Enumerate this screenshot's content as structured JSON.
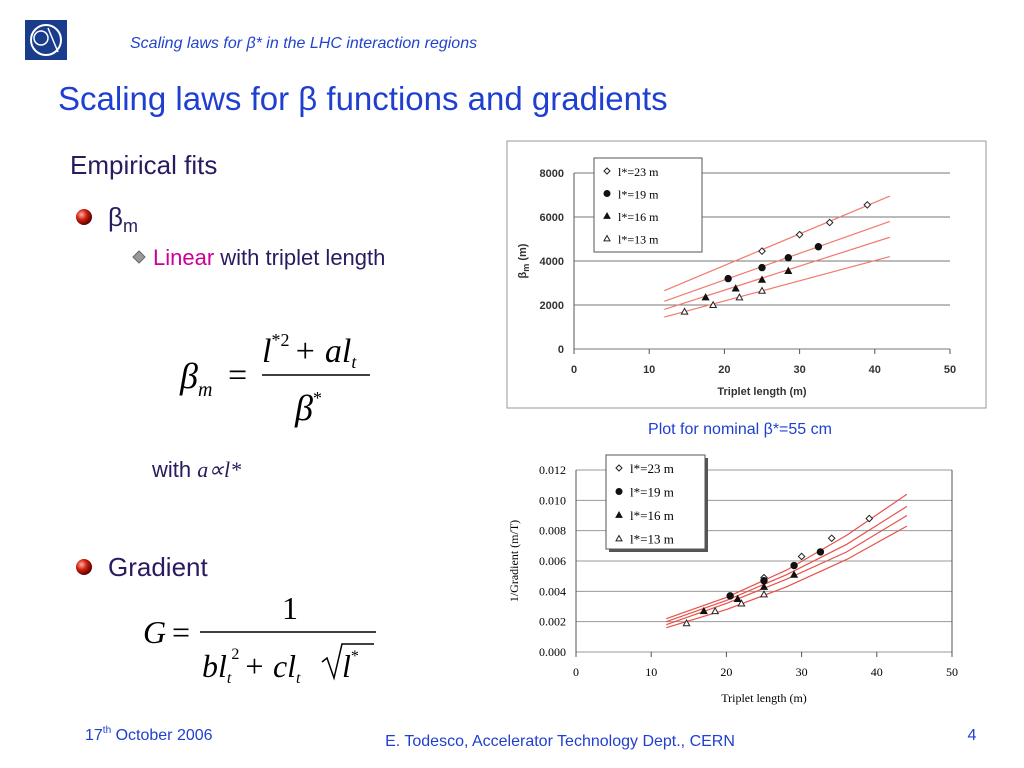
{
  "header": {
    "subtitle": "Scaling laws for β* in the LHC interaction regions",
    "title": "Scaling laws for β functions and gradients"
  },
  "body": {
    "heading": "Empirical fits",
    "bullet1": "β",
    "bullet1_sub": "m",
    "sub_highlight": "Linear",
    "sub_rest": "with triplet length",
    "with_text": "with",
    "with_math": "a∝l*",
    "bullet2": "Gradient"
  },
  "formula1": {
    "lhs": "β",
    "lhs_sub": "m",
    "eq": "=",
    "num_l": "l",
    "num_sup": "*2",
    "num_rest": "+ al",
    "num_sub": "t",
    "den": "β",
    "den_sup": "*"
  },
  "formula2": {
    "lhs": "G",
    "eq": "=",
    "num": "1",
    "den_bl": "bl",
    "den_sub1": "t",
    "den_sup1": "2",
    "den_cl": "+ cl",
    "den_sub2": "t",
    "den_l": "l",
    "den_sup2": "*"
  },
  "caption": "Plot for nominal β*=55 cm",
  "footer": {
    "date_day": "17",
    "date_sup": "th",
    "date_rest": "October 2006",
    "author": "E. Todesco, Accelerator Technology Dept., CERN",
    "page": "4"
  },
  "chart_data": [
    {
      "type": "scatter",
      "ylabel": "β",
      "ylabel_sub": "m",
      "ylabel_rest": " (m)",
      "xlabel": "Triplet length (m)",
      "xlim": [
        0,
        50
      ],
      "xticks": [
        0,
        10,
        20,
        30,
        40,
        50
      ],
      "ylim": [
        0,
        8000
      ],
      "yticks": [
        0,
        2000,
        4000,
        6000,
        8000
      ],
      "grid": true,
      "legend": "upper left",
      "fit_color": "#f07a6e",
      "series": [
        {
          "name": "l*=23 m",
          "marker": "diamond-open",
          "color": "#222222",
          "x": [
            25,
            30,
            34,
            39
          ],
          "values": [
            4450,
            5200,
            5750,
            6550
          ],
          "fit_x": [
            12,
            42
          ],
          "fit_y": [
            2650,
            6950
          ]
        },
        {
          "name": "l*=19 m",
          "marker": "circle",
          "color": "#111111",
          "x": [
            20.5,
            25,
            28.5,
            32.5
          ],
          "values": [
            3200,
            3700,
            4150,
            4650
          ],
          "fit_x": [
            12,
            42
          ],
          "fit_y": [
            2170,
            5800
          ]
        },
        {
          "name": "l*=16 m",
          "marker": "triangle",
          "color": "#111111",
          "x": [
            17.5,
            21.5,
            25,
            28.5
          ],
          "values": [
            2350,
            2750,
            3150,
            3550
          ],
          "fit_x": [
            12,
            42
          ],
          "fit_y": [
            1800,
            5080
          ]
        },
        {
          "name": "l*=13 m",
          "marker": "triangle-open",
          "color": "#222222",
          "x": [
            14.7,
            18.5,
            22,
            25
          ],
          "values": [
            1700,
            2000,
            2350,
            2650
          ],
          "fit_x": [
            12,
            42
          ],
          "fit_y": [
            1450,
            4200
          ]
        }
      ]
    },
    {
      "type": "scatter",
      "ylabel": "1/Gradient (m/T)",
      "xlabel": "Triplet length (m)",
      "xlim": [
        0,
        50
      ],
      "xticks": [
        0,
        10,
        20,
        30,
        40,
        50
      ],
      "ylim": [
        0,
        0.012
      ],
      "yticks": [
        {
          "value": 0,
          "label": "0.000"
        },
        {
          "value": 0.002,
          "label": "0.002"
        },
        {
          "value": 0.004,
          "label": "0.004"
        },
        {
          "value": 0.006,
          "label": "0.006"
        },
        {
          "value": 0.008,
          "label": "0.008"
        },
        {
          "value": 0.01,
          "label": "0.010"
        },
        {
          "value": 0.012,
          "label": "0.012"
        }
      ],
      "grid": true,
      "legend": "upper left",
      "fit_color": "#e8504a",
      "series": [
        {
          "name": "l*=23 m",
          "marker": "diamond-open",
          "color": "#222222",
          "x": [
            25,
            30,
            34,
            39
          ],
          "values": [
            0.0049,
            0.0063,
            0.0075,
            0.0088
          ],
          "fit_x": [
            12,
            20,
            28,
            36,
            44
          ],
          "fit_y": [
            0.0022,
            0.0036,
            0.0054,
            0.0077,
            0.0104
          ]
        },
        {
          "name": "l*=19 m",
          "marker": "circle",
          "color": "#111111",
          "x": [
            20.5,
            25,
            29,
            32.5
          ],
          "values": [
            0.0037,
            0.0047,
            0.0057,
            0.0066
          ],
          "fit_x": [
            12,
            20,
            28,
            36,
            44
          ],
          "fit_y": [
            0.002,
            0.0034,
            0.0051,
            0.0071,
            0.0096
          ]
        },
        {
          "name": "l*=16 m",
          "marker": "triangle",
          "color": "#111111",
          "x": [
            17,
            21.5,
            25,
            29
          ],
          "values": [
            0.0027,
            0.0035,
            0.0043,
            0.0051
          ],
          "fit_x": [
            12,
            20,
            28,
            36,
            44
          ],
          "fit_y": [
            0.0018,
            0.0032,
            0.0048,
            0.0066,
            0.009
          ]
        },
        {
          "name": "l*=13 m",
          "marker": "triangle-open",
          "color": "#222222",
          "x": [
            14.7,
            18.5,
            22,
            25
          ],
          "values": [
            0.0019,
            0.0027,
            0.0032,
            0.0038
          ],
          "fit_x": [
            12,
            20,
            28,
            36,
            44
          ],
          "fit_y": [
            0.0016,
            0.0028,
            0.0043,
            0.0061,
            0.0083
          ]
        }
      ]
    }
  ]
}
